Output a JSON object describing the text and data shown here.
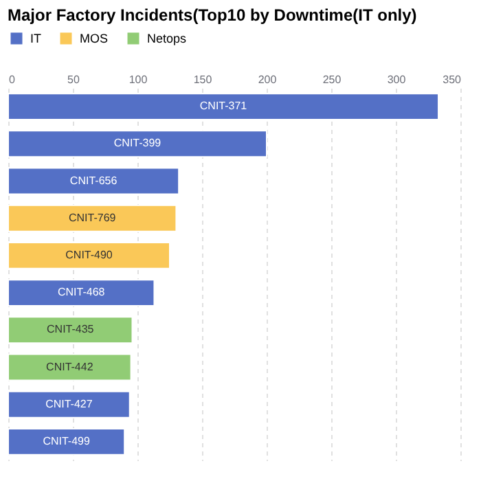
{
  "chart_data": {
    "type": "bar",
    "orientation": "horizontal",
    "title": "Major Factory Incidents(Top10 by Downtime(IT only)",
    "categories": [
      "CNIT-371",
      "CNIT-399",
      "CNIT-656",
      "CNIT-769",
      "CNIT-490",
      "CNIT-468",
      "CNIT-435",
      "CNIT-442",
      "CNIT-427",
      "CNIT-499"
    ],
    "series": [
      {
        "name": "IT",
        "color": "#5470c6",
        "values": [
          333,
          200,
          132,
          null,
          null,
          113,
          null,
          null,
          94,
          90
        ]
      },
      {
        "name": "MOS",
        "color": "#fac858",
        "values": [
          null,
          null,
          null,
          130,
          125,
          null,
          null,
          null,
          null,
          null
        ]
      },
      {
        "name": "Netops",
        "color": "#91cc75",
        "values": [
          null,
          null,
          null,
          null,
          null,
          null,
          96,
          95,
          null,
          null
        ]
      }
    ],
    "xlim": [
      0,
      350
    ],
    "xticks": [
      0,
      50,
      100,
      150,
      200,
      250,
      300,
      350
    ],
    "grid": "x",
    "legend": "top",
    "tick_labels": "x"
  }
}
